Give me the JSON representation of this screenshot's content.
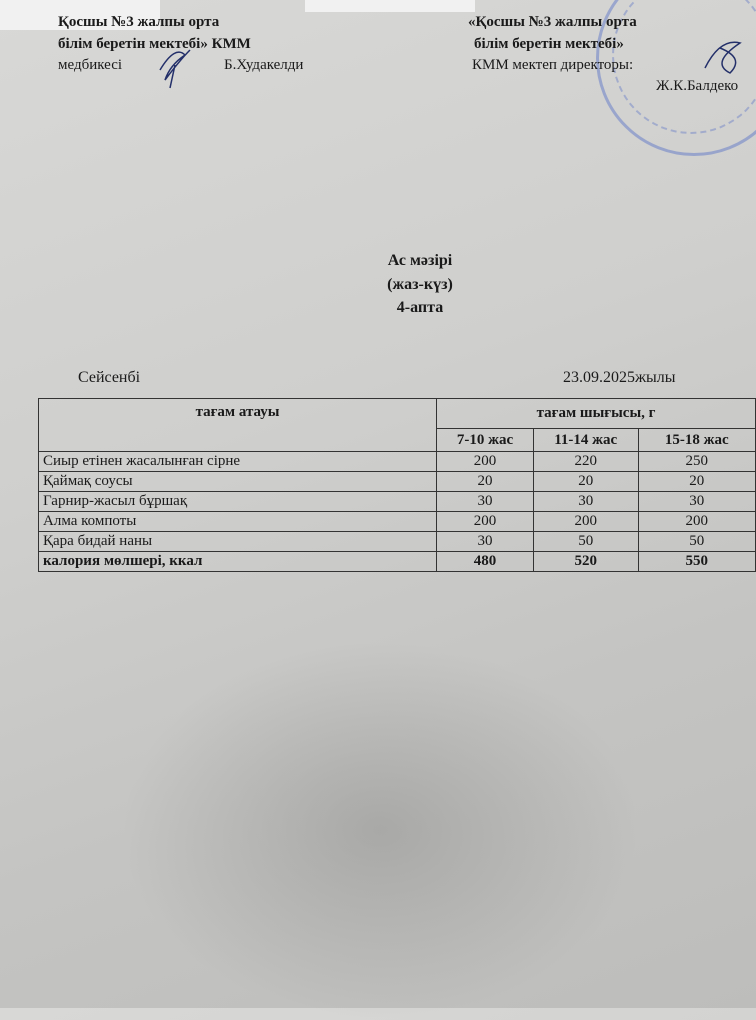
{
  "header_left": {
    "line0": "медбикесі:",
    "line1": "Қосшы №3 жалпы орта",
    "line2": "білім беретін мектебі» КММ",
    "line3_role": "медбикесі",
    "line3_name": "Б.Худакелди"
  },
  "header_right": {
    "line1": "«Қосшы №3 жалпы орта",
    "line2": "білім беретін мектебі»",
    "line3": "КММ мектеп директоры:",
    "line4": "Ж.К.Балдеко"
  },
  "title": {
    "line1": "Ас мәзірі",
    "line2": "(жаз-күз)",
    "line3": "4-апта"
  },
  "day": "Сейсенбі",
  "date": "23.09.2025жылы",
  "table": {
    "col_name": "тағам атауы",
    "col_output": "тағам шығысы, г",
    "ages": [
      "7-10 жас",
      "11-14 жас",
      "15-18 жас"
    ],
    "rows": [
      {
        "name": "Сиыр етінен жасалынған сірне",
        "v": [
          "200",
          "220",
          "250"
        ]
      },
      {
        "name": "Қаймақ соусы",
        "v": [
          "20",
          "20",
          "20"
        ]
      },
      {
        "name": "Гарнир-жасыл бұршақ",
        "v": [
          "30",
          "30",
          "30"
        ]
      },
      {
        "name": "Алма компоты",
        "v": [
          "200",
          "200",
          "200"
        ]
      },
      {
        "name": "Қара бидай наны",
        "v": [
          "30",
          "50",
          "50"
        ]
      }
    ],
    "total": {
      "name": "калория мөлшері, ккал",
      "v": [
        "480",
        "520",
        "550"
      ]
    }
  }
}
